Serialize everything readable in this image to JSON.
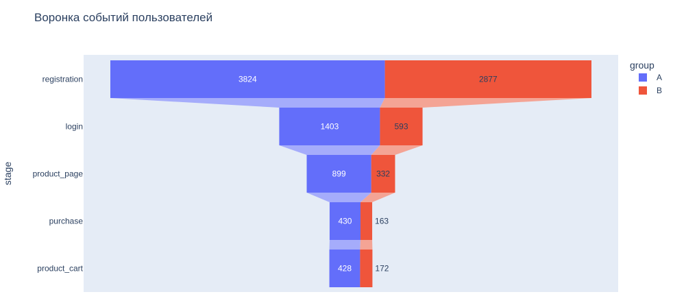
{
  "chart_data": {
    "type": "funnel",
    "title": "Воронка событий пользователей",
    "ylabel": "stage",
    "categories": [
      "registration",
      "login",
      "product_page",
      "purchase",
      "product_cart"
    ],
    "series": [
      {
        "name": "A",
        "values": [
          3824,
          1403,
          899,
          430,
          428
        ],
        "color": "#636efa",
        "connector_color": "#a5acfb",
        "label_color": "#ffffff"
      },
      {
        "name": "B",
        "values": [
          2877,
          593,
          332,
          163,
          172
        ],
        "color": "#ef553b",
        "connector_color": "#f4a495",
        "label_color": "#2a3f5f"
      }
    ],
    "legend": {
      "title": "group",
      "position": "right"
    },
    "plot_background": "#e5ecf6"
  }
}
